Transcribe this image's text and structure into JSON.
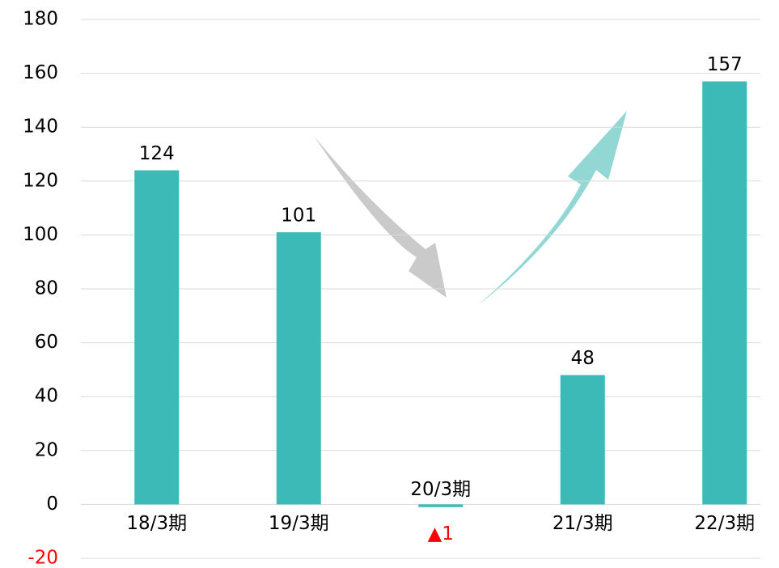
{
  "chart_data": {
    "type": "bar",
    "categories": [
      "18/3期",
      "19/3期",
      "20/3期",
      "21/3期",
      "22/3期"
    ],
    "values": [
      124,
      101,
      -1,
      48,
      157
    ],
    "value_labels": [
      "124",
      "101",
      "▲1",
      "48",
      "157"
    ],
    "color": "#3bbab8",
    "negative_color": "#ff0000",
    "ylim": [
      -20,
      180
    ],
    "yticks": [
      -20,
      0,
      20,
      40,
      60,
      80,
      100,
      120,
      140,
      160,
      180
    ],
    "grid": true
  }
}
